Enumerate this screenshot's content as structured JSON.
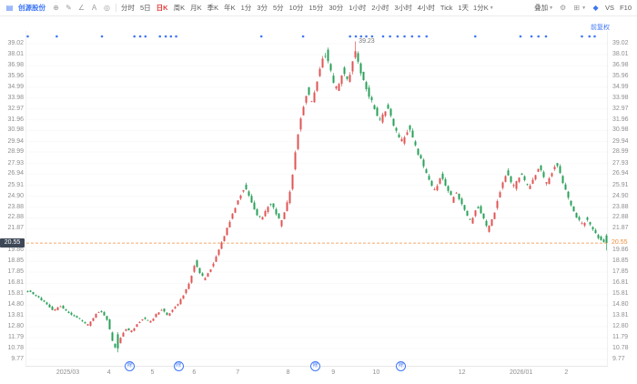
{
  "toolbar": {
    "stock_name": "创源股份",
    "periods": [
      "分时",
      "5日",
      "日K",
      "周K",
      "月K",
      "季K",
      "年K",
      "1分",
      "3分",
      "5分",
      "10分",
      "15分",
      "30分",
      "1小时",
      "2小时",
      "3小时",
      "4小时",
      "Tick",
      "1天"
    ],
    "active_period": "日K",
    "custom_period_dropdown": "1分K",
    "overlay_label": "叠加",
    "compare_label": "VS",
    "f10_label": "F10"
  },
  "chart": {
    "adjust_label": "前复权",
    "current_price": "20.55",
    "peak_annotation": "39.23",
    "up_color": "#e05555",
    "down_color": "#2aa05a",
    "current_line_color": "#ef8e3c",
    "marker_color": "#3f76f5",
    "y_axis_labels": [
      "39.02",
      "38.01",
      "36.98",
      "35.96",
      "34.99",
      "33.98",
      "32.97",
      "31.96",
      "30.98",
      "29.94",
      "28.99",
      "27.93",
      "26.94",
      "25.91",
      "24.90",
      "23.88",
      "22.88",
      "21.87",
      "19.86",
      "18.85",
      "17.85",
      "16.81",
      "15.81",
      "14.80",
      "13.81",
      "12.80",
      "11.79",
      "10.78",
      "9.77"
    ],
    "x_axis_labels": [
      {
        "t": "2025/03",
        "xf": 0.073
      },
      {
        "t": "4",
        "xf": 0.144
      },
      {
        "t": "5",
        "xf": 0.219
      },
      {
        "t": "6",
        "xf": 0.291
      },
      {
        "t": "7",
        "xf": 0.366
      },
      {
        "t": "8",
        "xf": 0.453
      },
      {
        "t": "9",
        "xf": 0.531
      },
      {
        "t": "10",
        "xf": 0.605
      },
      {
        "t": "12",
        "xf": 0.753
      },
      {
        "t": "2026/01",
        "xf": 0.855
      },
      {
        "t": "2",
        "xf": 0.933
      }
    ],
    "event_markers": [
      {
        "xf": 0.18,
        "label": "除"
      },
      {
        "xf": 0.264,
        "label": "除"
      },
      {
        "xf": 0.5,
        "label": "除"
      },
      {
        "xf": 0.648,
        "label": "除"
      }
    ],
    "dot_markers_xf": [
      0.0,
      0.05,
      0.128,
      0.184,
      0.194,
      0.203,
      0.228,
      0.238,
      0.247,
      0.256,
      0.403,
      0.475,
      0.556,
      0.566,
      0.575,
      0.584,
      0.594,
      0.613,
      0.625,
      0.638,
      0.65,
      0.663,
      0.675,
      0.688,
      0.772,
      0.85,
      0.869,
      0.881,
      0.894,
      0.956,
      0.969,
      0.978
    ]
  },
  "chart_data": {
    "type": "candlestick",
    "title": "创源股份 日K 前复权",
    "x_range": [
      "2025/03",
      "2026/02"
    ],
    "y_range": [
      9.77,
      39.02
    ],
    "high": 39.23,
    "low": 10.42,
    "last_price": 20.55,
    "peak_xf": 0.567,
    "crash_low_xf": 0.155,
    "price_path": [
      [
        0.003,
        16.1
      ],
      [
        0.019,
        15.6
      ],
      [
        0.034,
        14.9
      ],
      [
        0.047,
        14.3
      ],
      [
        0.059,
        14.7
      ],
      [
        0.072,
        14.1
      ],
      [
        0.084,
        13.7
      ],
      [
        0.097,
        13.3
      ],
      [
        0.106,
        12.9
      ],
      [
        0.116,
        13.7
      ],
      [
        0.125,
        14.3
      ],
      [
        0.134,
        13.9
      ],
      [
        0.142,
        13.0
      ],
      [
        0.148,
        11.4
      ],
      [
        0.155,
        10.6
      ],
      [
        0.163,
        11.9
      ],
      [
        0.172,
        12.7
      ],
      [
        0.181,
        12.3
      ],
      [
        0.191,
        13.1
      ],
      [
        0.202,
        13.6
      ],
      [
        0.213,
        13.2
      ],
      [
        0.223,
        13.9
      ],
      [
        0.234,
        14.4
      ],
      [
        0.244,
        13.8
      ],
      [
        0.253,
        14.5
      ],
      [
        0.264,
        15.1
      ],
      [
        0.275,
        16.2
      ],
      [
        0.283,
        17.2
      ],
      [
        0.291,
        18.8
      ],
      [
        0.298,
        17.9
      ],
      [
        0.308,
        17.2
      ],
      [
        0.317,
        18.1
      ],
      [
        0.327,
        19.2
      ],
      [
        0.336,
        20.5
      ],
      [
        0.345,
        21.7
      ],
      [
        0.353,
        22.9
      ],
      [
        0.361,
        24.0
      ],
      [
        0.369,
        25.0
      ],
      [
        0.377,
        25.8
      ],
      [
        0.384,
        24.9
      ],
      [
        0.394,
        23.7
      ],
      [
        0.403,
        22.7
      ],
      [
        0.413,
        23.5
      ],
      [
        0.422,
        24.2
      ],
      [
        0.431,
        23.3
      ],
      [
        0.439,
        22.4
      ],
      [
        0.447,
        23.6
      ],
      [
        0.455,
        25.2
      ],
      [
        0.461,
        27.5
      ],
      [
        0.467,
        30.0
      ],
      [
        0.473,
        32.0
      ],
      [
        0.48,
        33.8
      ],
      [
        0.486,
        34.7
      ],
      [
        0.492,
        33.4
      ],
      [
        0.498,
        34.6
      ],
      [
        0.505,
        36.3
      ],
      [
        0.511,
        37.6
      ],
      [
        0.517,
        38.3
      ],
      [
        0.523,
        36.9
      ],
      [
        0.53,
        35.4
      ],
      [
        0.536,
        34.6
      ],
      [
        0.542,
        35.6
      ],
      [
        0.548,
        36.6
      ],
      [
        0.555,
        35.4
      ],
      [
        0.561,
        36.8
      ],
      [
        0.567,
        38.4
      ],
      [
        0.573,
        37.2
      ],
      [
        0.58,
        36.0
      ],
      [
        0.586,
        35.0
      ],
      [
        0.592,
        34.2
      ],
      [
        0.598,
        33.4
      ],
      [
        0.605,
        32.6
      ],
      [
        0.611,
        31.8
      ],
      [
        0.617,
        32.6
      ],
      [
        0.623,
        33.2
      ],
      [
        0.63,
        32.2
      ],
      [
        0.636,
        31.2
      ],
      [
        0.642,
        30.4
      ],
      [
        0.648,
        29.8
      ],
      [
        0.655,
        30.6
      ],
      [
        0.661,
        31.2
      ],
      [
        0.667,
        30.2
      ],
      [
        0.673,
        29.2
      ],
      [
        0.68,
        28.4
      ],
      [
        0.686,
        27.6
      ],
      [
        0.692,
        26.8
      ],
      [
        0.698,
        26.0
      ],
      [
        0.705,
        25.4
      ],
      [
        0.711,
        26.2
      ],
      [
        0.717,
        26.8
      ],
      [
        0.723,
        26.0
      ],
      [
        0.73,
        25.2
      ],
      [
        0.736,
        24.6
      ],
      [
        0.742,
        25.4
      ],
      [
        0.748,
        24.6
      ],
      [
        0.755,
        23.8
      ],
      [
        0.761,
        23.0
      ],
      [
        0.767,
        22.4
      ],
      [
        0.773,
        23.2
      ],
      [
        0.78,
        24.0
      ],
      [
        0.786,
        23.2
      ],
      [
        0.792,
        22.4
      ],
      [
        0.798,
        21.8
      ],
      [
        0.805,
        22.8
      ],
      [
        0.811,
        24.0
      ],
      [
        0.817,
        25.2
      ],
      [
        0.823,
        26.2
      ],
      [
        0.83,
        27.2
      ],
      [
        0.836,
        26.4
      ],
      [
        0.842,
        25.6
      ],
      [
        0.848,
        26.4
      ],
      [
        0.855,
        27.0
      ],
      [
        0.861,
        26.2
      ],
      [
        0.867,
        25.6
      ],
      [
        0.873,
        26.2
      ],
      [
        0.88,
        27.0
      ],
      [
        0.886,
        27.6
      ],
      [
        0.892,
        26.8
      ],
      [
        0.898,
        26.0
      ],
      [
        0.905,
        26.8
      ],
      [
        0.911,
        27.6
      ],
      [
        0.917,
        27.9
      ],
      [
        0.923,
        26.8
      ],
      [
        0.93,
        25.6
      ],
      [
        0.936,
        24.6
      ],
      [
        0.942,
        23.8
      ],
      [
        0.948,
        23.2
      ],
      [
        0.955,
        22.6
      ],
      [
        0.961,
        22.2
      ],
      [
        0.967,
        22.8
      ],
      [
        0.973,
        22.2
      ],
      [
        0.98,
        21.6
      ],
      [
        0.986,
        21.2
      ],
      [
        0.992,
        20.9
      ],
      [
        0.998,
        20.55
      ]
    ]
  }
}
